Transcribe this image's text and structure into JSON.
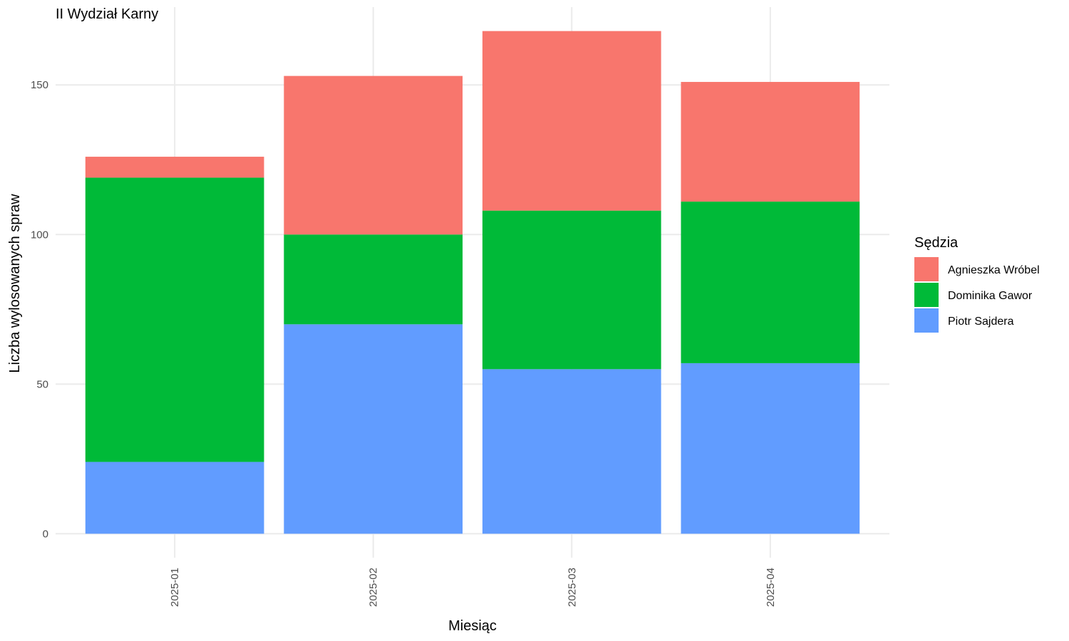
{
  "chart_data": {
    "type": "bar",
    "stacked": true,
    "title": "II Wydział Karny",
    "xlabel": "Miesiąc",
    "ylabel": "Liczba wylosowanych spraw",
    "categories": [
      "2025-01",
      "2025-02",
      "2025-03",
      "2025-04"
    ],
    "series": [
      {
        "name": "Piotr Sajdera",
        "color": "#619cff",
        "values": [
          24,
          70,
          55,
          57
        ]
      },
      {
        "name": "Dominika Gawor",
        "color": "#00ba38",
        "values": [
          95,
          30,
          53,
          54
        ]
      },
      {
        "name": "Agnieszka Wróbel",
        "color": "#f8766d",
        "values": [
          7,
          53,
          60,
          40
        ]
      }
    ],
    "ylim": [
      -8,
      176
    ],
    "yticks": [
      0,
      50,
      100,
      150
    ],
    "grid": true,
    "legend": {
      "title": "Sędzia",
      "position": "right",
      "order": [
        "Agnieszka Wróbel",
        "Dominika Gawor",
        "Piotr Sajdera"
      ]
    }
  }
}
